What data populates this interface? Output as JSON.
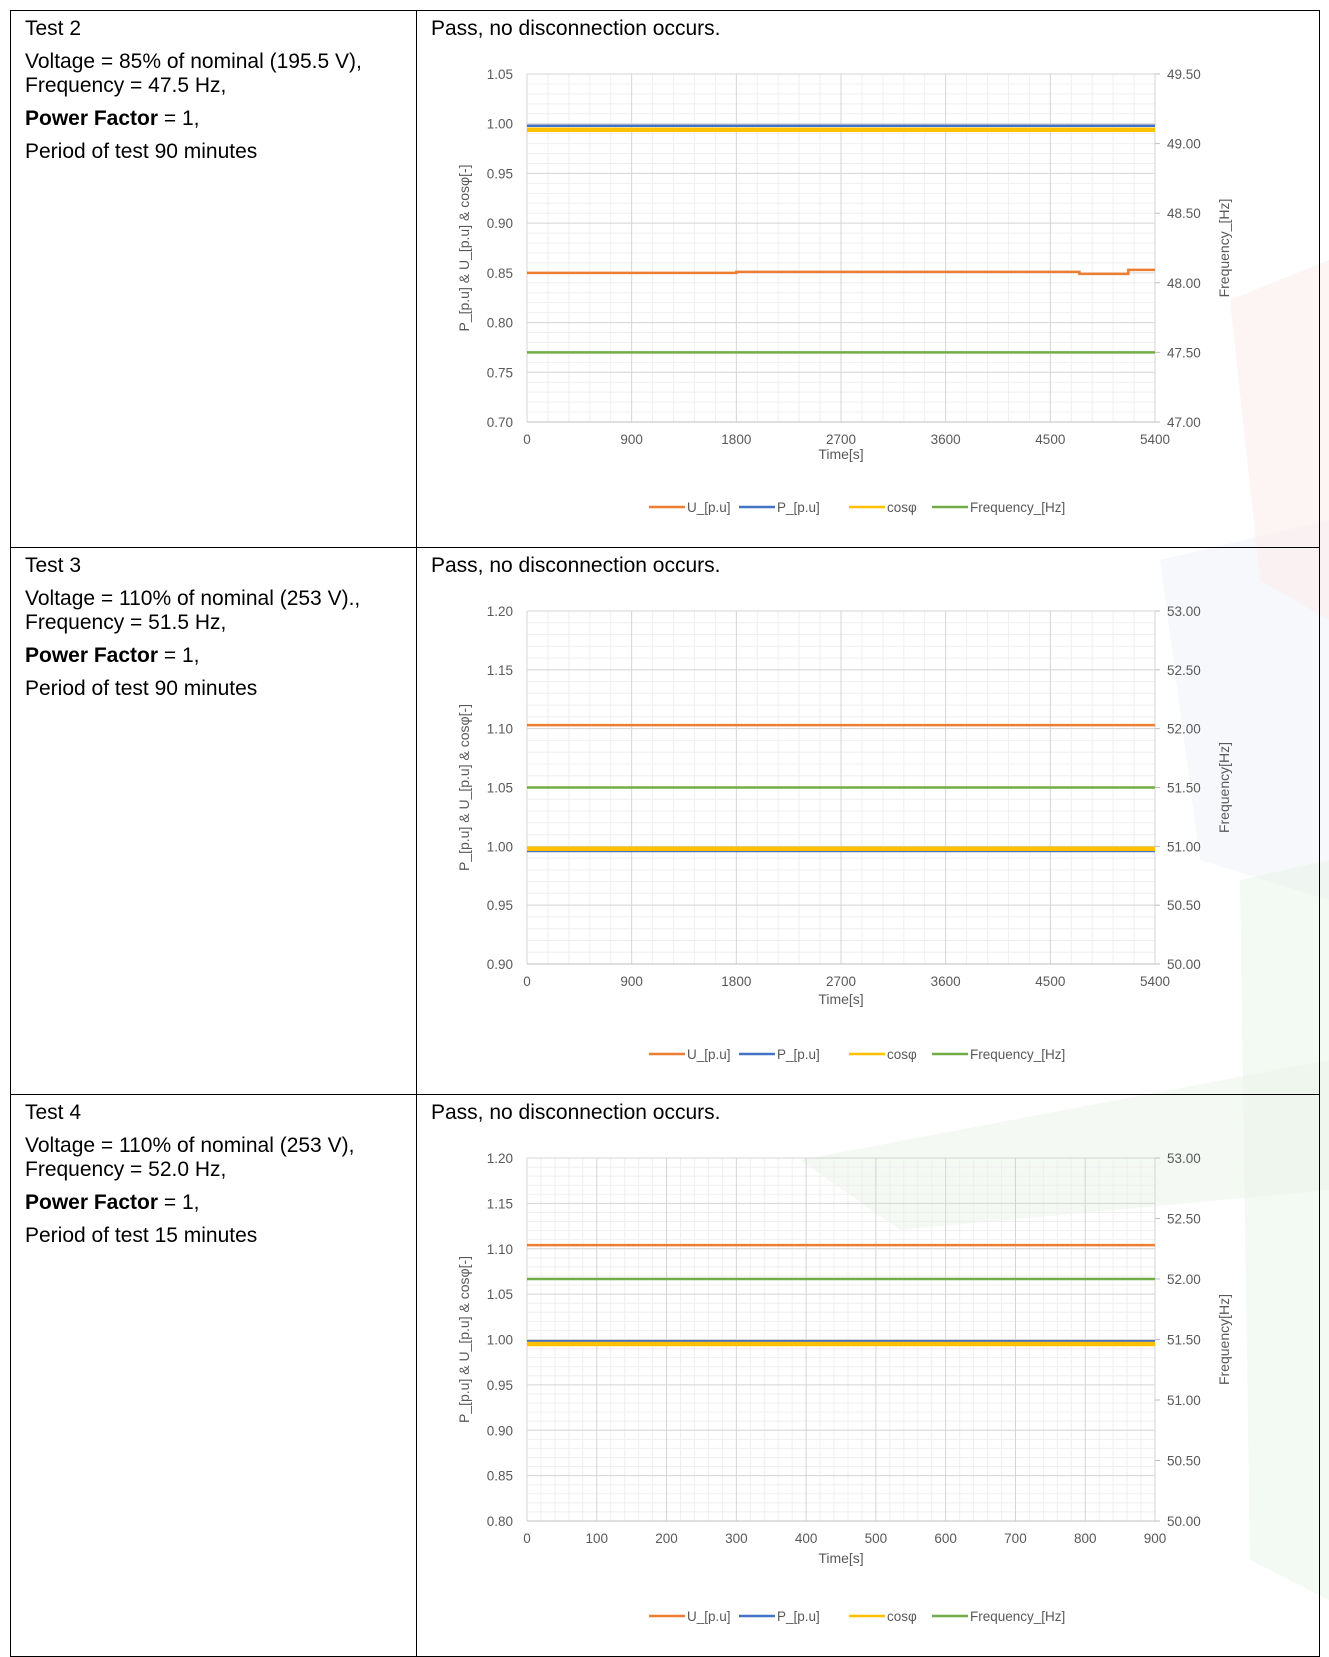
{
  "rows": [
    {
      "test_name": "Test 2",
      "voltage_line": "Voltage = 85% of nominal (195.5 V),",
      "frequency_line": "Frequency = 47.5 Hz,",
      "pf_label": "Power Factor",
      "pf_value": " = 1,",
      "period_line": "Period of test 90 minutes",
      "result": "Pass, no disconnection occurs."
    },
    {
      "test_name": "Test 3",
      "voltage_line": "Voltage = 110% of nominal (253 V).,",
      "frequency_line": "Frequency = 51.5 Hz,",
      "pf_label": "Power Factor",
      "pf_value": " = 1,",
      "period_line": "Period of test 90 minutes",
      "result": "Pass, no disconnection occurs."
    },
    {
      "test_name": "Test 4",
      "voltage_line": "Voltage = 110% of nominal (253 V),",
      "frequency_line": "Frequency = 52.0 Hz,",
      "pf_label": "Power Factor",
      "pf_value": " = 1,",
      "period_line": "Period of test 15 minutes",
      "result": "Pass, no disconnection occurs."
    }
  ],
  "colors": {
    "U": "#ED7D31",
    "P": "#4472C4",
    "cos": "#FFC000",
    "F": "#70AD47"
  },
  "chart_data": [
    {
      "type": "line",
      "xlabel": "Time[s]",
      "ylabel": "P_[p.u] & U_[p.u] & cosφ[-]",
      "y2label": "Frequency_[Hz]",
      "xlim": [
        0,
        5400
      ],
      "xticks": [
        0,
        900,
        1800,
        2700,
        3600,
        4500,
        5400
      ],
      "ylim": [
        0.7,
        1.05
      ],
      "yticks": [
        0.7,
        0.75,
        0.8,
        0.85,
        0.9,
        0.95,
        1.0,
        1.05
      ],
      "y2lim": [
        47.0,
        49.5
      ],
      "y2ticks": [
        47.0,
        47.5,
        48.0,
        48.5,
        49.0,
        49.5
      ],
      "legend": "bottom",
      "series": [
        {
          "name": "U_[p.u]",
          "axis": "left",
          "x": [
            0,
            1800,
            1800,
            4750,
            4750,
            5170,
            5170,
            5400
          ],
          "y": [
            0.85,
            0.85,
            0.851,
            0.851,
            0.849,
            0.849,
            0.853,
            0.853
          ]
        },
        {
          "name": "P_[p.u]",
          "axis": "left",
          "x": [
            0,
            5400
          ],
          "y": [
            0.998,
            0.998
          ]
        },
        {
          "name": "cosφ",
          "axis": "left",
          "x": [
            0,
            5400
          ],
          "y": [
            0.994,
            0.994
          ]
        },
        {
          "name": "Frequency_[Hz]",
          "axis": "right",
          "x": [
            0,
            5400
          ],
          "y": [
            47.5,
            47.5
          ]
        }
      ]
    },
    {
      "type": "line",
      "xlabel": "Time[s]",
      "ylabel": "P_[p.u] & U_[p.u] & cosφ[-]",
      "y2label": "Frequency[Hz]",
      "xlim": [
        0,
        5400
      ],
      "xticks": [
        0,
        900,
        1800,
        2700,
        3600,
        4500,
        5400
      ],
      "ylim": [
        0.9,
        1.2
      ],
      "yticks": [
        0.9,
        0.95,
        1.0,
        1.05,
        1.1,
        1.15,
        1.2
      ],
      "y2lim": [
        50.0,
        53.0
      ],
      "y2ticks": [
        50.0,
        50.5,
        51.0,
        51.5,
        52.0,
        52.5,
        53.0
      ],
      "legend": "bottom",
      "series": [
        {
          "name": "U_[p.u]",
          "axis": "left",
          "x": [
            0,
            5400
          ],
          "y": [
            1.103,
            1.103
          ]
        },
        {
          "name": "P_[p.u]",
          "axis": "left",
          "x": [
            0,
            5400
          ],
          "y": [
            0.996,
            0.996
          ]
        },
        {
          "name": "cosφ",
          "axis": "left",
          "x": [
            0,
            5400
          ],
          "y": [
            0.998,
            0.998
          ]
        },
        {
          "name": "Frequency_[Hz]",
          "axis": "right",
          "x": [
            0,
            5400
          ],
          "y": [
            51.5,
            51.5
          ]
        }
      ]
    },
    {
      "type": "line",
      "xlabel": "Time[s]",
      "ylabel": "P_[p.u] & U_[p.u] & cosφ[-]",
      "y2label": "Frequency[Hz]",
      "xlim": [
        0,
        900
      ],
      "xticks": [
        0,
        100,
        200,
        300,
        400,
        500,
        600,
        700,
        800,
        900
      ],
      "ylim": [
        0.8,
        1.2
      ],
      "yticks": [
        0.8,
        0.85,
        0.9,
        0.95,
        1.0,
        1.05,
        1.1,
        1.15,
        1.2
      ],
      "y2lim": [
        50.0,
        53.0
      ],
      "y2ticks": [
        50.0,
        50.5,
        51.0,
        51.5,
        52.0,
        52.5,
        53.0
      ],
      "legend": "bottom",
      "series": [
        {
          "name": "U_[p.u]",
          "axis": "left",
          "x": [
            0,
            900
          ],
          "y": [
            1.104,
            1.104
          ]
        },
        {
          "name": "P_[p.u]",
          "axis": "left",
          "x": [
            0,
            900
          ],
          "y": [
            0.998,
            0.998
          ]
        },
        {
          "name": "cosφ",
          "axis": "left",
          "x": [
            0,
            900
          ],
          "y": [
            0.995,
            0.995
          ]
        },
        {
          "name": "Frequency_[Hz]",
          "axis": "right",
          "x": [
            0,
            900
          ],
          "y": [
            52.0,
            52.0
          ]
        }
      ]
    }
  ]
}
